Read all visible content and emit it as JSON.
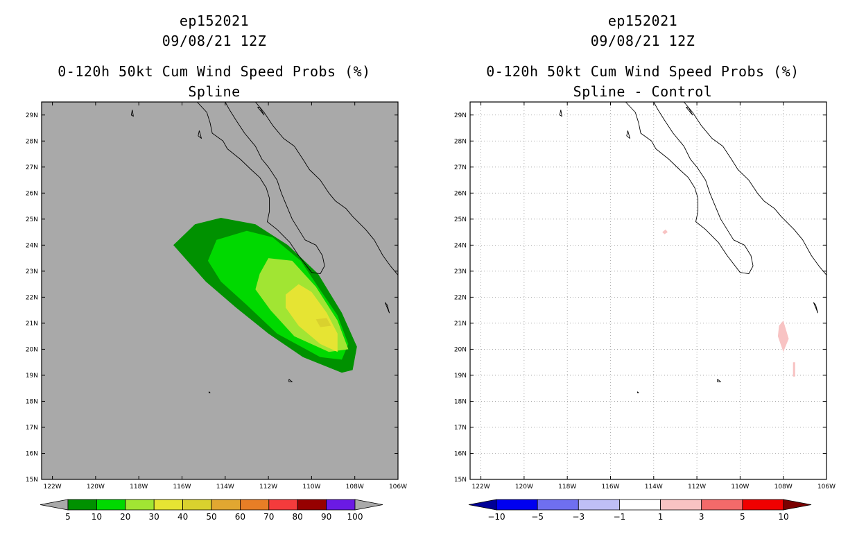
{
  "chart_data": [
    {
      "type": "heatmap",
      "id": "spline",
      "title_lines": [
        "ep152021",
        "09/08/21 12Z",
        "0-120h 50kt Cum Wind Speed Probs (%)",
        "Spline"
      ],
      "xlim": [
        -122.5,
        -106
      ],
      "ylim": [
        15,
        29.5
      ],
      "x_ticks": [
        -122,
        -120,
        -118,
        -116,
        -114,
        -112,
        -110,
        -108,
        -106
      ],
      "x_tick_labels": [
        "122W",
        "120W",
        "118W",
        "116W",
        "114W",
        "112W",
        "110W",
        "108W",
        "106W"
      ],
      "y_ticks": [
        15,
        16,
        17,
        18,
        19,
        20,
        21,
        22,
        23,
        24,
        25,
        26,
        27,
        28,
        29
      ],
      "y_tick_labels": [
        "15N",
        "16N",
        "17N",
        "18N",
        "19N",
        "20N",
        "21N",
        "22N",
        "23N",
        "24N",
        "25N",
        "26N",
        "27N",
        "28N",
        "29N"
      ],
      "grid": false,
      "background_color": "#a9a9a9",
      "contours": [
        {
          "level": 5,
          "color": "#009100",
          "points": [
            [
              -116.4,
              24.0
            ],
            [
              -115.4,
              24.8
            ],
            [
              -114.2,
              25.05
            ],
            [
              -112.6,
              24.8
            ],
            [
              -111.1,
              24.0
            ],
            [
              -109.7,
              22.9
            ],
            [
              -108.6,
              21.4
            ],
            [
              -107.9,
              20.1
            ],
            [
              -108.1,
              19.2
            ],
            [
              -108.6,
              19.1
            ],
            [
              -110.4,
              19.7
            ],
            [
              -112.0,
              20.6
            ],
            [
              -113.5,
              21.6
            ],
            [
              -114.9,
              22.6
            ]
          ]
        },
        {
          "level": 10,
          "color": "#00d900",
          "points": [
            [
              -114.8,
              23.4
            ],
            [
              -114.4,
              24.2
            ],
            [
              -113.0,
              24.55
            ],
            [
              -111.8,
              24.3
            ],
            [
              -110.5,
              23.4
            ],
            [
              -109.7,
              22.4
            ],
            [
              -108.8,
              21.3
            ],
            [
              -108.3,
              20.2
            ],
            [
              -108.6,
              19.6
            ],
            [
              -109.6,
              19.7
            ],
            [
              -111.6,
              20.6
            ],
            [
              -113.0,
              21.7
            ],
            [
              -114.2,
              22.6
            ]
          ]
        },
        {
          "level": 20,
          "color": "#a1e533",
          "points": [
            [
              -112.4,
              22.9
            ],
            [
              -112.0,
              23.5
            ],
            [
              -110.9,
              23.4
            ],
            [
              -109.8,
              22.4
            ],
            [
              -108.8,
              21.1
            ],
            [
              -108.3,
              20.0
            ],
            [
              -109.2,
              19.9
            ],
            [
              -110.8,
              20.5
            ],
            [
              -111.9,
              21.5
            ],
            [
              -112.6,
              22.3
            ]
          ]
        },
        {
          "level": 30,
          "color": "#e6e433",
          "points": [
            [
              -111.2,
              22.1
            ],
            [
              -110.6,
              22.5
            ],
            [
              -110.0,
              22.2
            ],
            [
              -109.3,
              21.4
            ],
            [
              -108.8,
              20.6
            ],
            [
              -108.8,
              19.9
            ],
            [
              -109.6,
              20.2
            ],
            [
              -110.6,
              20.9
            ],
            [
              -111.2,
              21.6
            ]
          ]
        },
        {
          "level": 40,
          "color": "#d9d12e",
          "points": [
            [
              -109.8,
              21.15
            ],
            [
              -109.3,
              21.2
            ],
            [
              -109.1,
              20.9
            ],
            [
              -109.6,
              20.85
            ]
          ]
        }
      ],
      "colorbar": {
        "levels": [
          5,
          10,
          20,
          30,
          40,
          50,
          60,
          70,
          80,
          90,
          100
        ],
        "colors": [
          "#a9a9a9",
          "#009100",
          "#00d900",
          "#a1e533",
          "#e6e433",
          "#d9d12e",
          "#e1a731",
          "#e87e26",
          "#f43b3c",
          "#960000",
          "#6b1ae4",
          "#a9a9a9"
        ]
      }
    },
    {
      "type": "heatmap",
      "id": "spline-control",
      "title_lines": [
        "ep152021",
        "09/08/21 12Z",
        "0-120h 50kt Cum Wind Speed Probs (%)",
        "Spline - Control"
      ],
      "xlim": [
        -122.5,
        -106
      ],
      "ylim": [
        15,
        29.5
      ],
      "x_ticks": [
        -122,
        -120,
        -118,
        -116,
        -114,
        -112,
        -110,
        -108,
        -106
      ],
      "x_tick_labels": [
        "122W",
        "120W",
        "118W",
        "116W",
        "114W",
        "112W",
        "110W",
        "108W",
        "106W"
      ],
      "y_ticks": [
        15,
        16,
        17,
        18,
        19,
        20,
        21,
        22,
        23,
        24,
        25,
        26,
        27,
        28,
        29
      ],
      "y_tick_labels": [
        "15N",
        "16N",
        "17N",
        "18N",
        "19N",
        "20N",
        "21N",
        "22N",
        "23N",
        "24N",
        "25N",
        "26N",
        "27N",
        "28N",
        "29N"
      ],
      "grid": true,
      "background_color": "#ffffff",
      "contours": [
        {
          "level": 1,
          "color": "#f8c3c3",
          "points": [
            [
              -113.6,
              24.5
            ],
            [
              -113.45,
              24.6
            ],
            [
              -113.35,
              24.5
            ],
            [
              -113.5,
              24.42
            ]
          ]
        },
        {
          "level": 1,
          "color": "#f8c3c3",
          "points": [
            [
              -108.2,
              20.9
            ],
            [
              -108.0,
              21.1
            ],
            [
              -107.75,
              20.4
            ],
            [
              -108.0,
              19.9
            ],
            [
              -108.25,
              20.5
            ]
          ]
        },
        {
          "level": 1,
          "color": "#f8c3c3",
          "points": [
            [
              -107.55,
              19.5
            ],
            [
              -107.45,
              19.5
            ],
            [
              -107.45,
              18.95
            ],
            [
              -107.55,
              18.95
            ]
          ]
        }
      ],
      "colorbar": {
        "levels": [
          -10,
          -5,
          -3,
          -1,
          1,
          3,
          5,
          10
        ],
        "colors": [
          "#000096",
          "#0000f0",
          "#6f6ff0",
          "#bfbff6",
          "#ffffff",
          "#f8c3c3",
          "#f36a6a",
          "#f00000",
          "#7a0000"
        ]
      }
    }
  ],
  "coastlines": [
    {
      "name": "pacific-coast",
      "points": [
        [
          -115.3,
          29.5
        ],
        [
          -114.85,
          29.1
        ],
        [
          -114.7,
          28.7
        ],
        [
          -114.6,
          28.3
        ],
        [
          -114.1,
          28.0
        ],
        [
          -113.9,
          27.7
        ],
        [
          -113.3,
          27.3
        ],
        [
          -112.8,
          26.9
        ],
        [
          -112.4,
          26.6
        ],
        [
          -112.1,
          26.2
        ],
        [
          -111.95,
          25.8
        ],
        [
          -111.95,
          25.3
        ],
        [
          -112.05,
          24.9
        ],
        [
          -111.6,
          24.6
        ],
        [
          -111.0,
          24.1
        ],
        [
          -110.6,
          23.6
        ],
        [
          -110.0,
          22.95
        ],
        [
          -109.6,
          22.9
        ],
        [
          -109.4,
          23.2
        ]
      ]
    },
    {
      "name": "gulf-west",
      "points": [
        [
          -109.4,
          23.2
        ],
        [
          -109.5,
          23.6
        ],
        [
          -109.8,
          24.0
        ],
        [
          -110.3,
          24.2
        ],
        [
          -110.6,
          24.6
        ],
        [
          -110.9,
          25.0
        ],
        [
          -111.2,
          25.6
        ],
        [
          -111.4,
          26.0
        ],
        [
          -111.6,
          26.5
        ],
        [
          -112.0,
          27.0
        ],
        [
          -112.3,
          27.3
        ],
        [
          -112.6,
          27.8
        ],
        [
          -113.1,
          28.3
        ],
        [
          -113.5,
          28.8
        ],
        [
          -113.8,
          29.2
        ],
        [
          -114.0,
          29.5
        ]
      ]
    },
    {
      "name": "mainland-coast",
      "points": [
        [
          -112.6,
          29.5
        ],
        [
          -112.2,
          29.1
        ],
        [
          -111.8,
          28.6
        ],
        [
          -111.3,
          28.1
        ],
        [
          -110.8,
          27.8
        ],
        [
          -110.4,
          27.3
        ],
        [
          -110.1,
          26.9
        ],
        [
          -109.6,
          26.5
        ],
        [
          -109.2,
          26.0
        ],
        [
          -108.9,
          25.7
        ],
        [
          -108.4,
          25.4
        ],
        [
          -108.1,
          25.1
        ],
        [
          -107.5,
          24.6
        ],
        [
          -107.1,
          24.2
        ],
        [
          -106.7,
          23.6
        ],
        [
          -106.35,
          23.2
        ],
        [
          -106.0,
          22.85
        ]
      ]
    },
    {
      "name": "guadalupe-island",
      "points": [
        [
          -118.3,
          29.2
        ],
        [
          -118.25,
          28.95
        ],
        [
          -118.35,
          29.0
        ],
        [
          -118.3,
          29.2
        ]
      ]
    },
    {
      "name": "cedros-island",
      "points": [
        [
          -115.2,
          28.4
        ],
        [
          -115.1,
          28.1
        ],
        [
          -115.25,
          28.2
        ],
        [
          -115.2,
          28.4
        ]
      ]
    },
    {
      "name": "tiburon-island",
      "points": [
        [
          -112.5,
          29.3
        ],
        [
          -112.2,
          29.0
        ],
        [
          -112.4,
          29.3
        ],
        [
          -112.5,
          29.3
        ]
      ]
    },
    {
      "name": "tres-marias",
      "points": [
        [
          -106.6,
          21.8
        ],
        [
          -106.4,
          21.4
        ],
        [
          -106.5,
          21.7
        ],
        [
          -106.6,
          21.8
        ]
      ]
    },
    {
      "name": "socorro-island",
      "points": [
        [
          -111.05,
          18.85
        ],
        [
          -110.9,
          18.75
        ],
        [
          -111.05,
          18.75
        ],
        [
          -111.05,
          18.85
        ]
      ]
    },
    {
      "name": "clarion-island",
      "points": [
        [
          -114.75,
          18.37
        ],
        [
          -114.7,
          18.33
        ],
        [
          -114.75,
          18.33
        ],
        [
          -114.75,
          18.37
        ]
      ]
    }
  ]
}
